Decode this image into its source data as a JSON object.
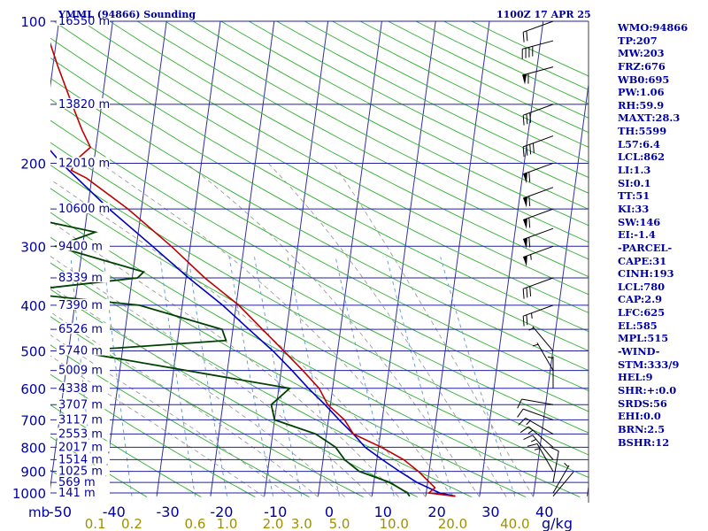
{
  "title_left": "YMML (94866) Sounding",
  "title_right": "1100Z 17 APR 25",
  "stats": [
    "WMO:94866",
    "TP:207",
    "MW:203",
    "FRZ:676",
    "WB0:695",
    "PW:1.06",
    "RH:59.9",
    "MAXT:28.3",
    "TH:5599",
    "L57:6.4",
    "LCL:862",
    "LI:1.3",
    "SI:0.1",
    "TT:51",
    "KI:33",
    "SW:146",
    "EI:-1.4",
    "-PARCEL-",
    "CAPE:31",
    "CINH:193",
    "LCL:780",
    "CAP:2.9",
    "LFC:625",
    "EL:585",
    "MPL:515",
    "-WIND-",
    "STM:333/9",
    "HEL:9",
    "SHR:+:0.0",
    "SRDS:56",
    "EHI:0.0",
    "BRN:2.5",
    "BSHR:12"
  ],
  "colors": {
    "isobar": "#2020a0",
    "isotherm": "#3030a0",
    "dry_adiabat": "#30b030",
    "moist_adiabat": "#909090",
    "mixing_ratio": "#70a0d0",
    "temperature": "#c00000",
    "dewpoint": "#004000",
    "parcel": "#0000c0",
    "text": "#0000a0",
    "mixing_label": "#a09000"
  },
  "chart_data": {
    "type": "line",
    "title": "YMML (94866) Sounding",
    "pressure_axis_label": "mb",
    "pressure_ticks": [
      100,
      200,
      300,
      400,
      500,
      600,
      700,
      800,
      900,
      1000
    ],
    "temperature_ticks": [
      "-50",
      "-40",
      "-30",
      "-20",
      "-10",
      "0",
      "10",
      "20",
      "30",
      "40"
    ],
    "mixing_ratio_unit": "g/kg",
    "mixing_ratio_ticks": [
      "0.1",
      "0.2",
      "0.6",
      "1.0",
      "2.0",
      "3.0",
      "5.0",
      "10.0",
      "20.0",
      "40.0"
    ],
    "heights": [
      {
        "p": 100,
        "label": "16550 m"
      },
      {
        "p": 150,
        "label": "13820 m"
      },
      {
        "p": 200,
        "label": "12010 m"
      },
      {
        "p": 250,
        "label": "10600 m"
      },
      {
        "p": 300,
        "label": "9400 m"
      },
      {
        "p": 350,
        "label": "8339 m"
      },
      {
        "p": 400,
        "label": "7390 m"
      },
      {
        "p": 450,
        "label": "6526 m"
      },
      {
        "p": 500,
        "label": "5740 m"
      },
      {
        "p": 550,
        "label": "5009 m"
      },
      {
        "p": 600,
        "label": "4338 m"
      },
      {
        "p": 650,
        "label": "3707 m"
      },
      {
        "p": 700,
        "label": "3117 m"
      },
      {
        "p": 750,
        "label": "2553 m"
      },
      {
        "p": 800,
        "label": "2017 m"
      },
      {
        "p": 850,
        "label": "1514 m"
      },
      {
        "p": 900,
        "label": "1025 m"
      },
      {
        "p": 950,
        "label": "569 m"
      },
      {
        "p": 1000,
        "label": "141 m"
      }
    ],
    "temperature_profile": [
      {
        "p": 1016,
        "t": 25.5
      },
      {
        "p": 1000,
        "t": 20.5
      },
      {
        "p": 975,
        "t": 21.5
      },
      {
        "p": 900,
        "t": 18.0
      },
      {
        "p": 850,
        "t": 15.0
      },
      {
        "p": 800,
        "t": 10.5
      },
      {
        "p": 750,
        "t": 5.0
      },
      {
        "p": 700,
        "t": 3.0
      },
      {
        "p": 650,
        "t": -0.5
      },
      {
        "p": 600,
        "t": -2.5
      },
      {
        "p": 550,
        "t": -6.0
      },
      {
        "p": 500,
        "t": -10.0
      },
      {
        "p": 450,
        "t": -14.5
      },
      {
        "p": 400,
        "t": -19.5
      },
      {
        "p": 350,
        "t": -26.5
      },
      {
        "p": 300,
        "t": -33.5
      },
      {
        "p": 250,
        "t": -42.5
      },
      {
        "p": 215,
        "t": -51.0
      },
      {
        "p": 207,
        "t": -54.0
      },
      {
        "p": 195,
        "t": -53.0
      },
      {
        "p": 185,
        "t": -51.0
      },
      {
        "p": 170,
        "t": -53.0
      },
      {
        "p": 150,
        "t": -55.5
      },
      {
        "p": 125,
        "t": -59.0
      },
      {
        "p": 100,
        "t": -63.0
      }
    ],
    "dewpoint_profile": [
      {
        "p": 1016,
        "t": 17.0
      },
      {
        "p": 1000,
        "t": 16.5
      },
      {
        "p": 950,
        "t": 13.0
      },
      {
        "p": 900,
        "t": 7.0
      },
      {
        "p": 850,
        "t": 4.0
      },
      {
        "p": 800,
        "t": 2.0
      },
      {
        "p": 750,
        "t": -2.0
      },
      {
        "p": 700,
        "t": -10.0
      },
      {
        "p": 650,
        "t": -11.0
      },
      {
        "p": 600,
        "t": -8.0
      },
      {
        "p": 500,
        "t": -49.0
      },
      {
        "p": 475,
        "t": -21.0
      },
      {
        "p": 450,
        "t": -22.0
      },
      {
        "p": 400,
        "t": -38.0
      },
      {
        "p": 375,
        "t": -62.0
      },
      {
        "p": 350,
        "t": -39.0
      },
      {
        "p": 340,
        "t": -38.0
      },
      {
        "p": 300,
        "t": -55.0
      },
      {
        "p": 280,
        "t": -48.0
      },
      {
        "p": 265,
        "t": -58.0
      },
      {
        "p": 245,
        "t": -61.0
      },
      {
        "p": 225,
        "t": -63.0
      },
      {
        "p": 200,
        "t": -73.0
      },
      {
        "p": 180,
        "t": -85.0
      },
      {
        "p": 165,
        "t": -88.0
      },
      {
        "p": 150,
        "t": -87.0
      },
      {
        "p": 100,
        "t": -85.0
      }
    ],
    "parcel_profile": [
      {
        "p": 1016,
        "t": 25.5
      },
      {
        "p": 1000,
        "t": 22.5
      },
      {
        "p": 950,
        "t": 18.0
      },
      {
        "p": 900,
        "t": 14.5
      },
      {
        "p": 850,
        "t": 11.0
      },
      {
        "p": 800,
        "t": 7.5
      },
      {
        "p": 750,
        "t": 5.0
      },
      {
        "p": 700,
        "t": 2.0
      },
      {
        "p": 650,
        "t": -1.0
      },
      {
        "p": 600,
        "t": -4.5
      },
      {
        "p": 550,
        "t": -8.0
      },
      {
        "p": 500,
        "t": -12.0
      },
      {
        "p": 450,
        "t": -17.0
      },
      {
        "p": 400,
        "t": -22.5
      },
      {
        "p": 350,
        "t": -29.5
      },
      {
        "p": 300,
        "t": -37.0
      },
      {
        "p": 250,
        "t": -46.0
      },
      {
        "p": 200,
        "t": -56.0
      },
      {
        "p": 150,
        "t": -67.0
      },
      {
        "p": 110,
        "t": -74.0
      }
    ],
    "wind_barbs": [
      {
        "p": 1016,
        "dir": 40,
        "kt": 3
      },
      {
        "p": 1000,
        "dir": 30,
        "kt": 5
      },
      {
        "p": 950,
        "dir": 10,
        "kt": 10
      },
      {
        "p": 900,
        "dir": 330,
        "kt": 15
      },
      {
        "p": 850,
        "dir": 320,
        "kt": 15
      },
      {
        "p": 800,
        "dir": 310,
        "kt": 15
      },
      {
        "p": 750,
        "dir": 300,
        "kt": 15
      },
      {
        "p": 700,
        "dir": 290,
        "kt": 10
      },
      {
        "p": 650,
        "dir": 280,
        "kt": 10
      },
      {
        "p": 600,
        "dir": 360,
        "kt": 5
      },
      {
        "p": 550,
        "dir": 330,
        "kt": 5
      },
      {
        "p": 500,
        "dir": 320,
        "kt": 5
      },
      {
        "p": 400,
        "dir": 250,
        "kt": 25
      },
      {
        "p": 350,
        "dir": 250,
        "kt": 30
      },
      {
        "p": 300,
        "dir": 250,
        "kt": 55
      },
      {
        "p": 275,
        "dir": 250,
        "kt": 60
      },
      {
        "p": 250,
        "dir": 250,
        "kt": 60
      },
      {
        "p": 225,
        "dir": 250,
        "kt": 60
      },
      {
        "p": 200,
        "dir": 250,
        "kt": 60
      },
      {
        "p": 175,
        "dir": 250,
        "kt": 40
      },
      {
        "p": 150,
        "dir": 250,
        "kt": 30
      },
      {
        "p": 125,
        "dir": 255,
        "kt": 60
      },
      {
        "p": 110,
        "dir": 255,
        "kt": 40
      },
      {
        "p": 100,
        "dir": 250,
        "kt": 20
      }
    ]
  }
}
